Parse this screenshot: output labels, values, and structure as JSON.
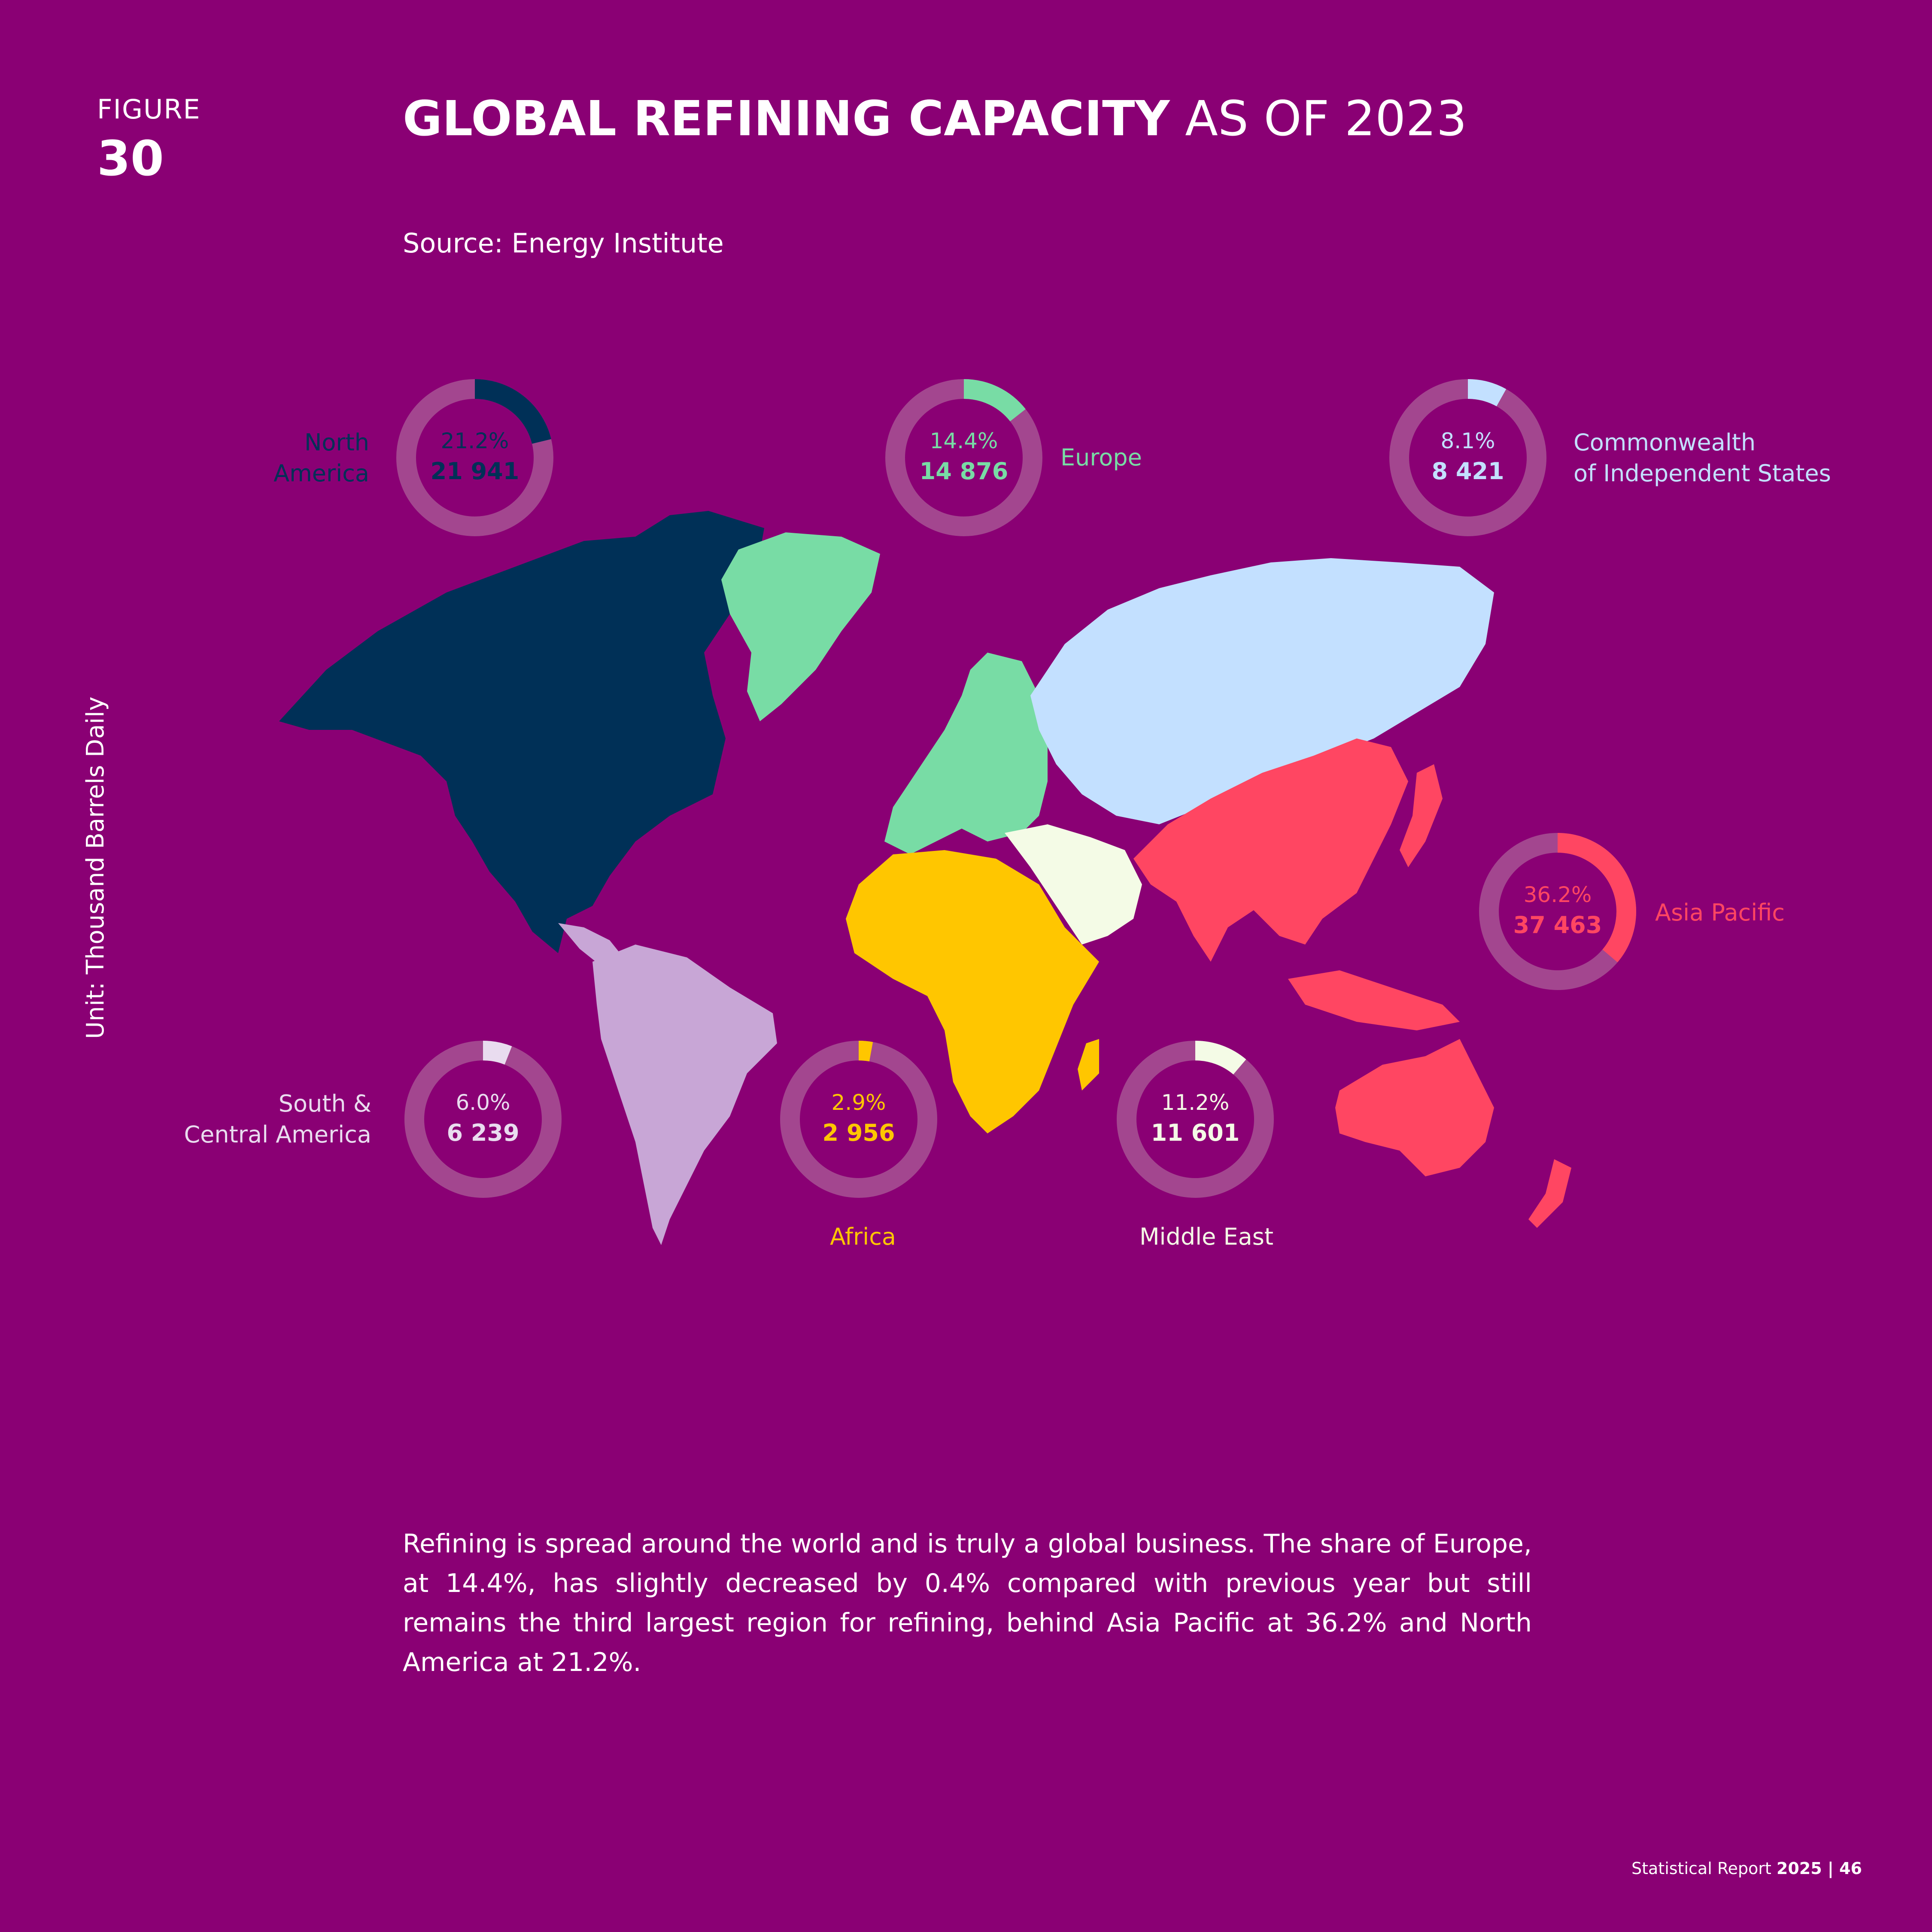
{
  "figure": {
    "label": "FIGURE",
    "number": "30"
  },
  "title": {
    "bold": "GLOBAL REFINING CAPACITY",
    "light": " AS OF 2023"
  },
  "source": "Source: Energy Institute",
  "unit_label": "Unit: Thousand Barrels Daily",
  "body_text": "Refining is spread around the world and is truly a global business. The share of Europe, at 14.4%, has slightly decreased by 0.4% compared with previous year but still remains the third largest region for refining, behind Asia Pacific at 36.2% and North America at 21.2%.",
  "footer": {
    "prefix": "Statistical Report ",
    "year": "2025",
    "sep": " | ",
    "page": "46"
  },
  "colors": {
    "background": "#8a0074",
    "ring_track": "#a3468f",
    "north_america": "#003057",
    "europe": "#78dca5",
    "cis": "#c3e0ff",
    "asia_pacific": "#ff4662",
    "middle_east": "#f4fbe6",
    "africa": "#ffc600",
    "south_central_america": "#c8a6d6"
  },
  "chart_data": {
    "type": "donut",
    "unit": "Thousand Barrels Daily",
    "regions": [
      {
        "id": "north_america",
        "name": "North\nAmerica",
        "share_pct": 21.2,
        "share_label": "21.2%",
        "value": 21941,
        "value_label": "21 941",
        "color": "#003057"
      },
      {
        "id": "europe",
        "name": "Europe",
        "share_pct": 14.4,
        "share_label": "14.4%",
        "value": 14876,
        "value_label": "14 876",
        "color": "#78dca5"
      },
      {
        "id": "cis",
        "name": "Commonwealth\nof Independent States",
        "share_pct": 8.1,
        "share_label": "8.1%",
        "value": 8421,
        "value_label": "8 421",
        "color": "#c3e0ff"
      },
      {
        "id": "asia_pacific",
        "name": "Asia Pacific",
        "share_pct": 36.2,
        "share_label": "36.2%",
        "value": 37463,
        "value_label": "37 463",
        "color": "#ff4662"
      },
      {
        "id": "south_central_america",
        "name": "South &\nCentral America",
        "share_pct": 6.0,
        "share_label": "6.0%",
        "value": 6239,
        "value_label": "6 239",
        "color": "#e9dcef"
      },
      {
        "id": "africa",
        "name": "Africa",
        "share_pct": 2.9,
        "share_label": "2.9%",
        "value": 2956,
        "value_label": "2 956",
        "color": "#ffc600"
      },
      {
        "id": "middle_east",
        "name": "Middle East",
        "share_pct": 11.2,
        "share_label": "11.2%",
        "value": 11601,
        "value_label": "11 601",
        "color": "#f4fbe6"
      }
    ]
  }
}
